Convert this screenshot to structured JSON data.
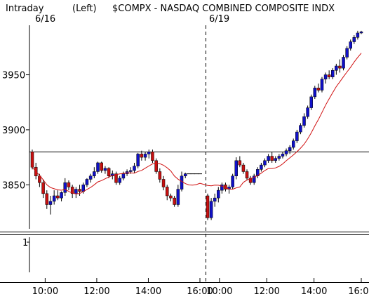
{
  "header": {
    "mode": "Intraday",
    "axis_side": "(Left)",
    "symbol_title": "$COMPX - NASDAQ COMBINED COMPOSITE INDX"
  },
  "chart_data": {
    "type": "candlestick",
    "sessions": [
      {
        "date": "6/16",
        "start": "09:30",
        "end": "16:00"
      },
      {
        "date": "6/19",
        "start": "09:30",
        "end": "16:00"
      }
    ],
    "y_ticks": [
      3850,
      3900,
      3950
    ],
    "ylim": [
      3810,
      3995
    ],
    "reference_line": 3880,
    "x_tick_labels": [
      "10:00",
      "12:00",
      "14:00",
      "16:00",
      "10:00",
      "12:00",
      "14:00",
      "16:00"
    ],
    "lower_panel": {
      "tick_label": "1"
    },
    "colors": {
      "up": "#1010c8",
      "down": "#c81010",
      "ma": "#d01010",
      "grid": "#000000"
    },
    "candles": [
      [
        3880,
        3882,
        3864,
        3866
      ],
      [
        3866,
        3870,
        3855,
        3858
      ],
      [
        3858,
        3860,
        3848,
        3852
      ],
      [
        3852,
        3855,
        3838,
        3842
      ],
      [
        3842,
        3845,
        3828,
        3832
      ],
      [
        3832,
        3840,
        3823,
        3835
      ],
      [
        3835,
        3845,
        3832,
        3840
      ],
      [
        3840,
        3845,
        3836,
        3838
      ],
      [
        3838,
        3844,
        3835,
        3843
      ],
      [
        3843,
        3856,
        3840,
        3852
      ],
      [
        3852,
        3854,
        3845,
        3848
      ],
      [
        3848,
        3850,
        3838,
        3842
      ],
      [
        3842,
        3848,
        3838,
        3846
      ],
      [
        3846,
        3850,
        3840,
        3844
      ],
      [
        3844,
        3852,
        3842,
        3850
      ],
      [
        3850,
        3856,
        3848,
        3855
      ],
      [
        3855,
        3860,
        3852,
        3858
      ],
      [
        3858,
        3866,
        3856,
        3862
      ],
      [
        3862,
        3871,
        3860,
        3870
      ],
      [
        3870,
        3871,
        3861,
        3863
      ],
      [
        3863,
        3867,
        3860,
        3865
      ],
      [
        3865,
        3866,
        3856,
        3858
      ],
      [
        3858,
        3863,
        3855,
        3860
      ],
      [
        3860,
        3862,
        3850,
        3852
      ],
      [
        3852,
        3858,
        3850,
        3856
      ],
      [
        3856,
        3862,
        3854,
        3860
      ],
      [
        3860,
        3864,
        3858,
        3862
      ],
      [
        3862,
        3866,
        3860,
        3863
      ],
      [
        3863,
        3870,
        3861,
        3867
      ],
      [
        3867,
        3879,
        3865,
        3878
      ],
      [
        3878,
        3881,
        3872,
        3875
      ],
      [
        3875,
        3880,
        3872,
        3878
      ],
      [
        3878,
        3882,
        3874,
        3880
      ],
      [
        3880,
        3882,
        3870,
        3872
      ],
      [
        3872,
        3874,
        3860,
        3862
      ],
      [
        3862,
        3865,
        3852,
        3855
      ],
      [
        3855,
        3858,
        3845,
        3848
      ],
      [
        3848,
        3850,
        3836,
        3840
      ],
      [
        3840,
        3842,
        3835,
        3838
      ],
      [
        3838,
        3840,
        3830,
        3832
      ],
      [
        3832,
        3850,
        3830,
        3846
      ],
      [
        3846,
        3862,
        3844,
        3858
      ],
      [
        3858,
        3861,
        3856,
        3860
      ],
      [
        3860,
        3860,
        3860,
        3860
      ],
      [
        3860,
        3860,
        3860,
        3860
      ],
      [
        3860,
        3860,
        3860,
        3860
      ],
      [
        3860,
        3860,
        3860,
        3860
      ],
      [
        3840,
        3842,
        3818,
        3820
      ],
      [
        3820,
        3838,
        3818,
        3835
      ],
      [
        3835,
        3842,
        3830,
        3838
      ],
      [
        3838,
        3848,
        3834,
        3845
      ],
      [
        3845,
        3852,
        3842,
        3850
      ],
      [
        3850,
        3852,
        3844,
        3846
      ],
      [
        3846,
        3850,
        3842,
        3848
      ],
      [
        3848,
        3860,
        3846,
        3858
      ],
      [
        3858,
        3875,
        3855,
        3872
      ],
      [
        3872,
        3876,
        3866,
        3868
      ],
      [
        3868,
        3870,
        3860,
        3862
      ],
      [
        3862,
        3864,
        3854,
        3856
      ],
      [
        3856,
        3858,
        3850,
        3852
      ],
      [
        3852,
        3860,
        3850,
        3858
      ],
      [
        3858,
        3866,
        3856,
        3864
      ],
      [
        3864,
        3870,
        3862,
        3868
      ],
      [
        3868,
        3874,
        3866,
        3872
      ],
      [
        3872,
        3878,
        3870,
        3876
      ],
      [
        3876,
        3880,
        3870,
        3872
      ],
      [
        3872,
        3876,
        3870,
        3874
      ],
      [
        3874,
        3878,
        3872,
        3876
      ],
      [
        3876,
        3880,
        3874,
        3878
      ],
      [
        3878,
        3883,
        3876,
        3881
      ],
      [
        3881,
        3886,
        3878,
        3884
      ],
      [
        3884,
        3892,
        3882,
        3890
      ],
      [
        3890,
        3900,
        3888,
        3898
      ],
      [
        3898,
        3906,
        3896,
        3904
      ],
      [
        3904,
        3915,
        3902,
        3912
      ],
      [
        3912,
        3922,
        3910,
        3920
      ],
      [
        3920,
        3932,
        3918,
        3930
      ],
      [
        3930,
        3940,
        3928,
        3938
      ],
      [
        3938,
        3942,
        3934,
        3936
      ],
      [
        3936,
        3948,
        3934,
        3946
      ],
      [
        3946,
        3952,
        3942,
        3950
      ],
      [
        3950,
        3954,
        3946,
        3948
      ],
      [
        3948,
        3956,
        3946,
        3954
      ],
      [
        3954,
        3960,
        3950,
        3958
      ],
      [
        3958,
        3964,
        3952,
        3956
      ],
      [
        3956,
        3968,
        3954,
        3966
      ],
      [
        3966,
        3976,
        3964,
        3974
      ],
      [
        3974,
        3982,
        3972,
        3980
      ],
      [
        3980,
        3986,
        3978,
        3984
      ],
      [
        3984,
        3990,
        3982,
        3988
      ],
      [
        3988,
        3990,
        3987,
        3989
      ]
    ]
  }
}
